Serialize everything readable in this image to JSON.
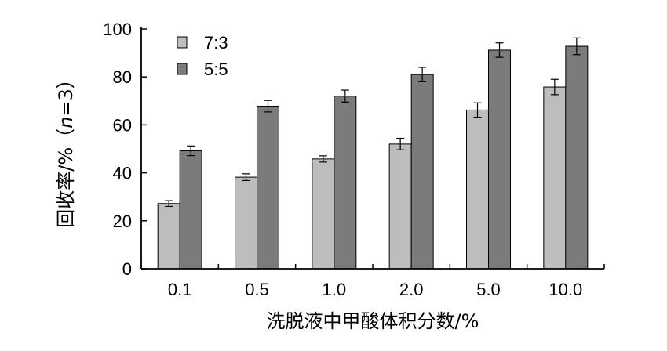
{
  "chart_data": {
    "type": "bar",
    "categories": [
      "0.1",
      "0.5",
      "1.0",
      "2.0",
      "5.0",
      "10.0"
    ],
    "series": [
      {
        "name": "7:3",
        "color": "#bdbdbd",
        "values": [
          27.2,
          38.2,
          45.8,
          52.0,
          66.2,
          75.8
        ],
        "errors": [
          1.2,
          1.4,
          1.3,
          2.4,
          3.0,
          3.2
        ]
      },
      {
        "name": "5:5",
        "color": "#7b7b7b",
        "values": [
          49.2,
          67.8,
          72.0,
          81.0,
          91.2,
          92.8
        ],
        "errors": [
          2.0,
          2.4,
          2.5,
          3.0,
          3.0,
          3.5
        ]
      }
    ],
    "xlabel": "洗脱液中甲酸体积分数/%",
    "ylabel_parts": [
      "回收率/%（",
      "n",
      "=3）"
    ],
    "ylim": [
      0,
      100
    ],
    "yticks": [
      "0",
      "20",
      "40",
      "60",
      "80",
      "100"
    ],
    "legend_position": "top-left"
  }
}
